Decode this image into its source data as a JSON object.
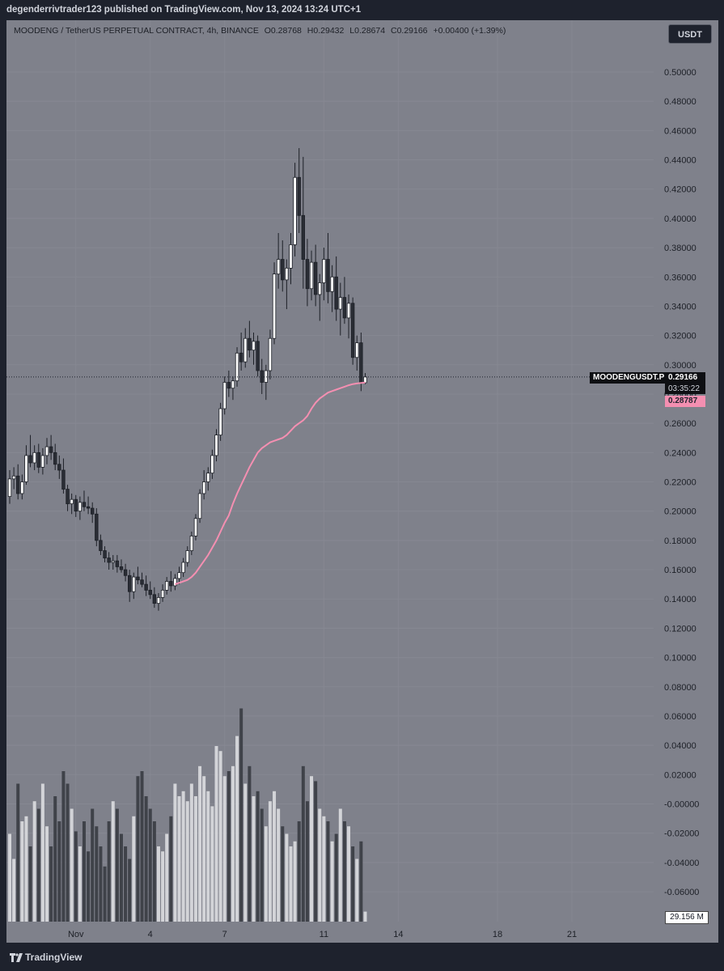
{
  "header": {
    "publish_line": "degenderrivtrader123 published on TradingView.com, Nov 13, 2024 13:24 UTC+1"
  },
  "legend": {
    "symbol_line": "MOODENG / TetherUS PERPETUAL CONTRACT, 4h, BINANCE",
    "open": "O0.28768",
    "high": "H0.29432",
    "low": "L0.28674",
    "close": "C0.29166",
    "change": "+0.00400 (+1.39%)"
  },
  "currency_button": "USDT",
  "price_tags": {
    "symbol": "MOODENGUSDT.P",
    "last_price": "0.29166",
    "countdown": "03:35:22",
    "ma_value": "0.28787"
  },
  "volume_tag": "29.156 M",
  "footer": {
    "logo_text": "TradingView"
  },
  "colors": {
    "chart_bg": "#7f818b",
    "page_bg": "#1e222d",
    "candle_body": "#ffffff",
    "candle_dark": "#2a2d35",
    "ma_line": "#f48fb1",
    "volume_up": "#d3d4d8",
    "volume_down": "#3f4249"
  },
  "icons": {
    "logo": "tradingview-logo-icon"
  },
  "chart_data": {
    "type": "candlestick",
    "interval": "4h",
    "y_axis": {
      "ticks": [
        "0.50000",
        "0.48000",
        "0.46000",
        "0.44000",
        "0.42000",
        "0.40000",
        "0.38000",
        "0.36000",
        "0.34000",
        "0.32000",
        "0.30000",
        "0.28000",
        "0.26000",
        "0.24000",
        "0.22000",
        "0.20000",
        "0.18000",
        "0.16000",
        "0.14000",
        "0.12000",
        "0.10000",
        "0.08000",
        "0.06000",
        "0.04000",
        "0.02000",
        "-0.00000",
        "-0.02000",
        "-0.04000",
        "-0.06000"
      ],
      "range": [
        -0.07,
        0.51
      ]
    },
    "x_axis": {
      "ticks": [
        {
          "label": "Nov",
          "bar": 16
        },
        {
          "label": "4",
          "bar": 34
        },
        {
          "label": "7",
          "bar": 52
        },
        {
          "label": "11",
          "bar": 76
        },
        {
          "label": "14",
          "bar": 94
        },
        {
          "label": "18",
          "bar": 118
        },
        {
          "label": "21",
          "bar": 136
        }
      ]
    },
    "grid": true,
    "candles": [
      [
        0.21,
        0.228,
        0.205,
        0.222
      ],
      [
        0.222,
        0.23,
        0.215,
        0.224
      ],
      [
        0.224,
        0.232,
        0.208,
        0.212
      ],
      [
        0.212,
        0.225,
        0.208,
        0.22
      ],
      [
        0.22,
        0.245,
        0.218,
        0.238
      ],
      [
        0.238,
        0.252,
        0.23,
        0.233
      ],
      [
        0.233,
        0.245,
        0.228,
        0.24
      ],
      [
        0.24,
        0.246,
        0.226,
        0.23
      ],
      [
        0.23,
        0.243,
        0.225,
        0.238
      ],
      [
        0.238,
        0.25,
        0.232,
        0.244
      ],
      [
        0.244,
        0.252,
        0.235,
        0.24
      ],
      [
        0.24,
        0.246,
        0.228,
        0.232
      ],
      [
        0.232,
        0.238,
        0.222,
        0.228
      ],
      [
        0.228,
        0.236,
        0.212,
        0.215
      ],
      [
        0.215,
        0.218,
        0.2,
        0.205
      ],
      [
        0.205,
        0.212,
        0.198,
        0.208
      ],
      [
        0.208,
        0.211,
        0.196,
        0.2
      ],
      [
        0.2,
        0.21,
        0.194,
        0.206
      ],
      [
        0.206,
        0.214,
        0.2,
        0.203
      ],
      [
        0.203,
        0.21,
        0.198,
        0.202
      ],
      [
        0.202,
        0.206,
        0.192,
        0.198
      ],
      [
        0.198,
        0.202,
        0.176,
        0.18
      ],
      [
        0.18,
        0.184,
        0.17,
        0.173
      ],
      [
        0.173,
        0.176,
        0.165,
        0.168
      ],
      [
        0.168,
        0.172,
        0.16,
        0.165
      ],
      [
        0.165,
        0.17,
        0.16,
        0.166
      ],
      [
        0.166,
        0.17,
        0.158,
        0.162
      ],
      [
        0.162,
        0.167,
        0.158,
        0.16
      ],
      [
        0.16,
        0.164,
        0.152,
        0.156
      ],
      [
        0.156,
        0.16,
        0.138,
        0.145
      ],
      [
        0.145,
        0.158,
        0.14,
        0.155
      ],
      [
        0.155,
        0.162,
        0.15,
        0.153
      ],
      [
        0.153,
        0.158,
        0.148,
        0.15
      ],
      [
        0.15,
        0.156,
        0.142,
        0.146
      ],
      [
        0.146,
        0.152,
        0.14,
        0.143
      ],
      [
        0.143,
        0.148,
        0.134,
        0.137
      ],
      [
        0.137,
        0.144,
        0.132,
        0.141
      ],
      [
        0.141,
        0.15,
        0.138,
        0.146
      ],
      [
        0.146,
        0.155,
        0.143,
        0.152
      ],
      [
        0.152,
        0.159,
        0.145,
        0.149
      ],
      [
        0.149,
        0.157,
        0.146,
        0.154
      ],
      [
        0.154,
        0.162,
        0.15,
        0.158
      ],
      [
        0.158,
        0.168,
        0.155,
        0.165
      ],
      [
        0.165,
        0.176,
        0.162,
        0.173
      ],
      [
        0.173,
        0.186,
        0.17,
        0.183
      ],
      [
        0.183,
        0.198,
        0.18,
        0.195
      ],
      [
        0.195,
        0.215,
        0.192,
        0.212
      ],
      [
        0.212,
        0.228,
        0.208,
        0.22
      ],
      [
        0.22,
        0.23,
        0.214,
        0.226
      ],
      [
        0.226,
        0.242,
        0.222,
        0.238
      ],
      [
        0.238,
        0.256,
        0.234,
        0.252
      ],
      [
        0.252,
        0.274,
        0.248,
        0.27
      ],
      [
        0.27,
        0.292,
        0.266,
        0.288
      ],
      [
        0.288,
        0.296,
        0.278,
        0.284
      ],
      [
        0.284,
        0.292,
        0.276,
        0.289
      ],
      [
        0.289,
        0.312,
        0.285,
        0.308
      ],
      [
        0.308,
        0.322,
        0.296,
        0.302
      ],
      [
        0.302,
        0.325,
        0.298,
        0.318
      ],
      [
        0.318,
        0.33,
        0.305,
        0.31
      ],
      [
        0.31,
        0.322,
        0.3,
        0.316
      ],
      [
        0.316,
        0.32,
        0.292,
        0.296
      ],
      [
        0.296,
        0.304,
        0.28,
        0.288
      ],
      [
        0.288,
        0.3,
        0.276,
        0.296
      ],
      [
        0.296,
        0.324,
        0.29,
        0.318
      ],
      [
        0.318,
        0.37,
        0.314,
        0.362
      ],
      [
        0.362,
        0.39,
        0.352,
        0.372
      ],
      [
        0.372,
        0.385,
        0.35,
        0.358
      ],
      [
        0.358,
        0.372,
        0.338,
        0.366
      ],
      [
        0.366,
        0.39,
        0.355,
        0.382
      ],
      [
        0.382,
        0.438,
        0.374,
        0.428
      ],
      [
        0.428,
        0.448,
        0.39,
        0.402
      ],
      [
        0.402,
        0.442,
        0.352,
        0.372
      ],
      [
        0.372,
        0.386,
        0.34,
        0.352
      ],
      [
        0.352,
        0.378,
        0.344,
        0.37
      ],
      [
        0.37,
        0.382,
        0.34,
        0.348
      ],
      [
        0.348,
        0.362,
        0.33,
        0.356
      ],
      [
        0.356,
        0.38,
        0.344,
        0.372
      ],
      [
        0.372,
        0.39,
        0.342,
        0.35
      ],
      [
        0.35,
        0.368,
        0.336,
        0.36
      ],
      [
        0.36,
        0.374,
        0.33,
        0.338
      ],
      [
        0.338,
        0.356,
        0.32,
        0.346
      ],
      [
        0.346,
        0.36,
        0.328,
        0.332
      ],
      [
        0.332,
        0.348,
        0.318,
        0.342
      ],
      [
        0.342,
        0.346,
        0.3,
        0.305
      ],
      [
        0.305,
        0.32,
        0.296,
        0.315
      ],
      [
        0.315,
        0.322,
        0.282,
        0.288
      ],
      [
        0.28768,
        0.29432,
        0.28674,
        0.29166
      ]
    ],
    "ma_line": [
      0.15,
      0.151,
      0.152,
      0.153,
      0.155,
      0.158,
      0.162,
      0.166,
      0.17,
      0.175,
      0.18,
      0.186,
      0.192,
      0.197,
      0.205,
      0.212,
      0.218,
      0.224,
      0.23,
      0.235,
      0.24,
      0.243,
      0.245,
      0.247,
      0.248,
      0.249,
      0.25,
      0.252,
      0.255,
      0.258,
      0.26,
      0.262,
      0.265,
      0.27,
      0.274,
      0.277,
      0.279,
      0.281,
      0.282,
      0.283,
      0.284,
      0.285,
      0.286,
      0.2868,
      0.2872,
      0.2876,
      0.28787
    ],
    "ma_start_bar": 40,
    "volume": [
      0.35,
      0.25,
      0.55,
      0.4,
      0.42,
      0.3,
      0.48,
      0.45,
      0.55,
      0.38,
      0.3,
      0.5,
      0.4,
      0.6,
      0.55,
      0.45,
      0.36,
      0.3,
      0.4,
      0.28,
      0.45,
      0.38,
      0.3,
      0.22,
      0.4,
      0.48,
      0.45,
      0.35,
      0.3,
      0.25,
      0.42,
      0.58,
      0.6,
      0.5,
      0.45,
      0.4,
      0.3,
      0.28,
      0.35,
      0.42,
      0.55,
      0.5,
      0.52,
      0.48,
      0.55,
      0.5,
      0.62,
      0.58,
      0.52,
      0.46,
      0.7,
      0.68,
      0.58,
      0.6,
      0.62,
      0.74,
      0.85,
      0.55,
      0.62,
      0.5,
      0.52,
      0.45,
      0.38,
      0.48,
      0.52,
      0.45,
      0.38,
      0.35,
      0.3,
      0.32,
      0.4,
      0.62,
      0.48,
      0.58,
      0.56,
      0.45,
      0.42,
      0.4,
      0.32,
      0.35,
      0.45,
      0.4,
      0.38,
      0.3,
      0.25,
      0.32,
      0.04
    ]
  }
}
